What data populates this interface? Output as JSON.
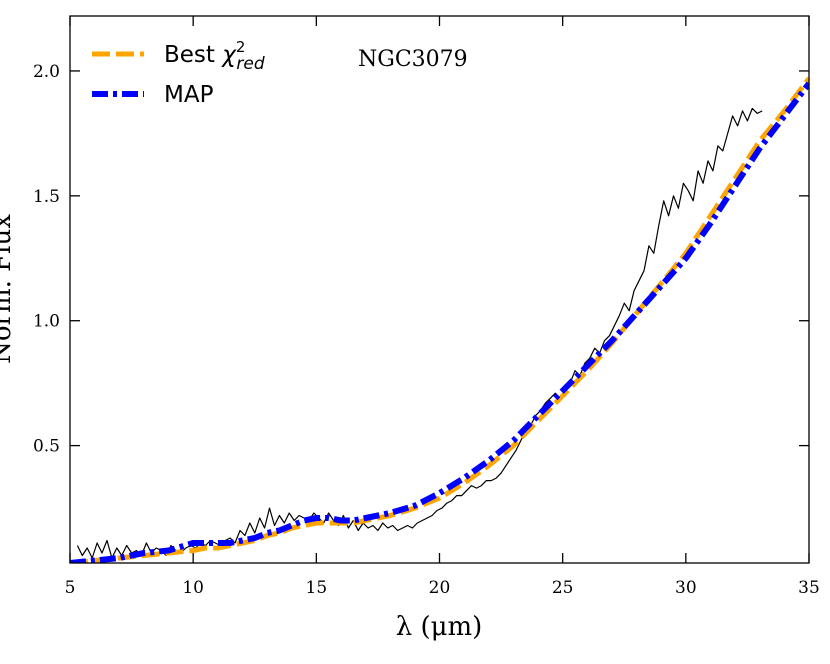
{
  "chart_data": {
    "type": "line",
    "title": "",
    "annotation": "NGC3079",
    "xlabel": "λ (μm)",
    "ylabel": "Norm. Flux",
    "xlim": [
      5,
      35
    ],
    "ylim": [
      0.03,
      2.22
    ],
    "xticks": [
      5,
      10,
      15,
      20,
      25,
      30,
      35
    ],
    "yticks": [
      0.5,
      1.0,
      1.5,
      2.0
    ],
    "ytick_labels": [
      "0.5",
      "1.0",
      "1.5",
      "2.0"
    ],
    "grid": false,
    "legend": {
      "placement": "top-left",
      "entries": [
        {
          "label": "Best χ²red",
          "text": "Best ",
          "math_symbol": "χ",
          "math_sup": "2",
          "math_sub": "red",
          "color": "#FFA500",
          "style": "dashed"
        },
        {
          "label": "MAP",
          "color": "#0000FF",
          "style": "dashdot"
        }
      ]
    },
    "series": [
      {
        "name": "",
        "role": "observed spectrum",
        "color": "#000000",
        "x": [
          5.3,
          5.5,
          5.7,
          5.9,
          6.1,
          6.3,
          6.5,
          6.7,
          6.9,
          7.1,
          7.3,
          7.5,
          7.7,
          7.9,
          8.1,
          8.3,
          8.5,
          8.7,
          8.9,
          9.1,
          9.3,
          9.5,
          9.7,
          9.9,
          10.1,
          10.3,
          10.5,
          10.7,
          10.9,
          11.1,
          11.3,
          11.5,
          11.7,
          11.9,
          12.1,
          12.3,
          12.5,
          12.7,
          12.9,
          13.1,
          13.3,
          13.5,
          13.7,
          13.9,
          14.1,
          14.3,
          14.5,
          14.7,
          14.9,
          15.1,
          15.3,
          15.5,
          15.7,
          15.9,
          16.1,
          16.3,
          16.5,
          16.7,
          16.9,
          17.1,
          17.3,
          17.5,
          17.7,
          17.9,
          18.1,
          18.3,
          18.5,
          18.7,
          18.9,
          19.1,
          19.3,
          19.5,
          19.7,
          19.9,
          20.1,
          20.3,
          20.5,
          20.7,
          20.9,
          21.1,
          21.3,
          21.5,
          21.7,
          21.9,
          22.1,
          22.3,
          22.5,
          22.7,
          22.9,
          23.1,
          23.3,
          23.5,
          23.7,
          23.9,
          24.1,
          24.3,
          24.5,
          24.7,
          24.9,
          25.1,
          25.3,
          25.5,
          25.7,
          25.9,
          26.1,
          26.3,
          26.5,
          26.7,
          26.9,
          27.1,
          27.3,
          27.5,
          27.7,
          27.9,
          28.1,
          28.3,
          28.5,
          28.7,
          28.9,
          29.1,
          29.3,
          29.5,
          29.7,
          29.9,
          30.1,
          30.3,
          30.5,
          30.7,
          30.9,
          31.1,
          31.3,
          31.5,
          31.7,
          31.9,
          32.1,
          32.3,
          32.5,
          32.7,
          32.9,
          33.1
        ],
        "y": [
          0.1,
          0.06,
          0.09,
          0.05,
          0.11,
          0.07,
          0.12,
          0.05,
          0.09,
          0.06,
          0.1,
          0.07,
          0.08,
          0.06,
          0.11,
          0.07,
          0.09,
          0.08,
          0.06,
          0.1,
          0.08,
          0.07,
          0.09,
          0.1,
          0.09,
          0.11,
          0.1,
          0.12,
          0.11,
          0.1,
          0.12,
          0.13,
          0.11,
          0.16,
          0.14,
          0.19,
          0.15,
          0.21,
          0.17,
          0.25,
          0.18,
          0.22,
          0.19,
          0.23,
          0.2,
          0.22,
          0.21,
          0.2,
          0.23,
          0.21,
          0.19,
          0.23,
          0.2,
          0.18,
          0.22,
          0.17,
          0.2,
          0.16,
          0.19,
          0.17,
          0.18,
          0.16,
          0.19,
          0.17,
          0.18,
          0.16,
          0.17,
          0.18,
          0.17,
          0.19,
          0.2,
          0.21,
          0.22,
          0.24,
          0.25,
          0.27,
          0.28,
          0.3,
          0.3,
          0.32,
          0.34,
          0.33,
          0.34,
          0.36,
          0.36,
          0.37,
          0.39,
          0.42,
          0.45,
          0.48,
          0.52,
          0.56,
          0.58,
          0.62,
          0.64,
          0.67,
          0.69,
          0.71,
          0.69,
          0.73,
          0.75,
          0.8,
          0.78,
          0.83,
          0.85,
          0.89,
          0.87,
          0.92,
          0.94,
          0.98,
          1.02,
          1.07,
          1.04,
          1.12,
          1.16,
          1.2,
          1.3,
          1.27,
          1.38,
          1.48,
          1.42,
          1.5,
          1.45,
          1.55,
          1.52,
          1.48,
          1.6,
          1.55,
          1.64,
          1.6,
          1.7,
          1.68,
          1.75,
          1.82,
          1.78,
          1.84,
          1.8,
          1.85,
          1.83,
          1.84
        ]
      },
      {
        "name": "Best χ²red",
        "color": "#FFA500",
        "style": "dashed",
        "x": [
          5,
          6,
          7,
          8,
          9,
          10,
          10.5,
          11,
          11.5,
          12,
          12.5,
          13,
          13.5,
          14,
          14.5,
          15,
          15.5,
          16,
          16.5,
          17,
          17.5,
          18,
          19,
          20,
          21,
          22,
          23,
          24,
          25,
          26,
          27,
          28,
          29,
          30,
          31,
          32,
          33,
          34,
          35
        ],
        "y": [
          0.03,
          0.04,
          0.05,
          0.06,
          0.07,
          0.08,
          0.09,
          0.09,
          0.1,
          0.11,
          0.12,
          0.14,
          0.15,
          0.17,
          0.18,
          0.19,
          0.19,
          0.19,
          0.19,
          0.2,
          0.21,
          0.22,
          0.25,
          0.29,
          0.35,
          0.42,
          0.5,
          0.6,
          0.7,
          0.8,
          0.91,
          1.03,
          1.15,
          1.27,
          1.42,
          1.57,
          1.72,
          1.84,
          1.97
        ]
      },
      {
        "name": "MAP",
        "color": "#0000FF",
        "style": "dashdot",
        "x": [
          5,
          6,
          7,
          8,
          9,
          10,
          10.5,
          11,
          11.5,
          12,
          12.5,
          13,
          13.5,
          14,
          14.5,
          15,
          15.5,
          16,
          16.5,
          17,
          17.5,
          18,
          19,
          20,
          21,
          22,
          23,
          24,
          25,
          26,
          27,
          28,
          29,
          30,
          31,
          32,
          33,
          34,
          35
        ],
        "y": [
          0.03,
          0.04,
          0.05,
          0.07,
          0.08,
          0.11,
          0.11,
          0.11,
          0.11,
          0.12,
          0.13,
          0.15,
          0.16,
          0.18,
          0.2,
          0.21,
          0.21,
          0.2,
          0.2,
          0.21,
          0.22,
          0.23,
          0.26,
          0.31,
          0.37,
          0.44,
          0.52,
          0.62,
          0.72,
          0.82,
          0.92,
          1.03,
          1.14,
          1.25,
          1.39,
          1.54,
          1.69,
          1.82,
          1.95
        ]
      }
    ]
  }
}
